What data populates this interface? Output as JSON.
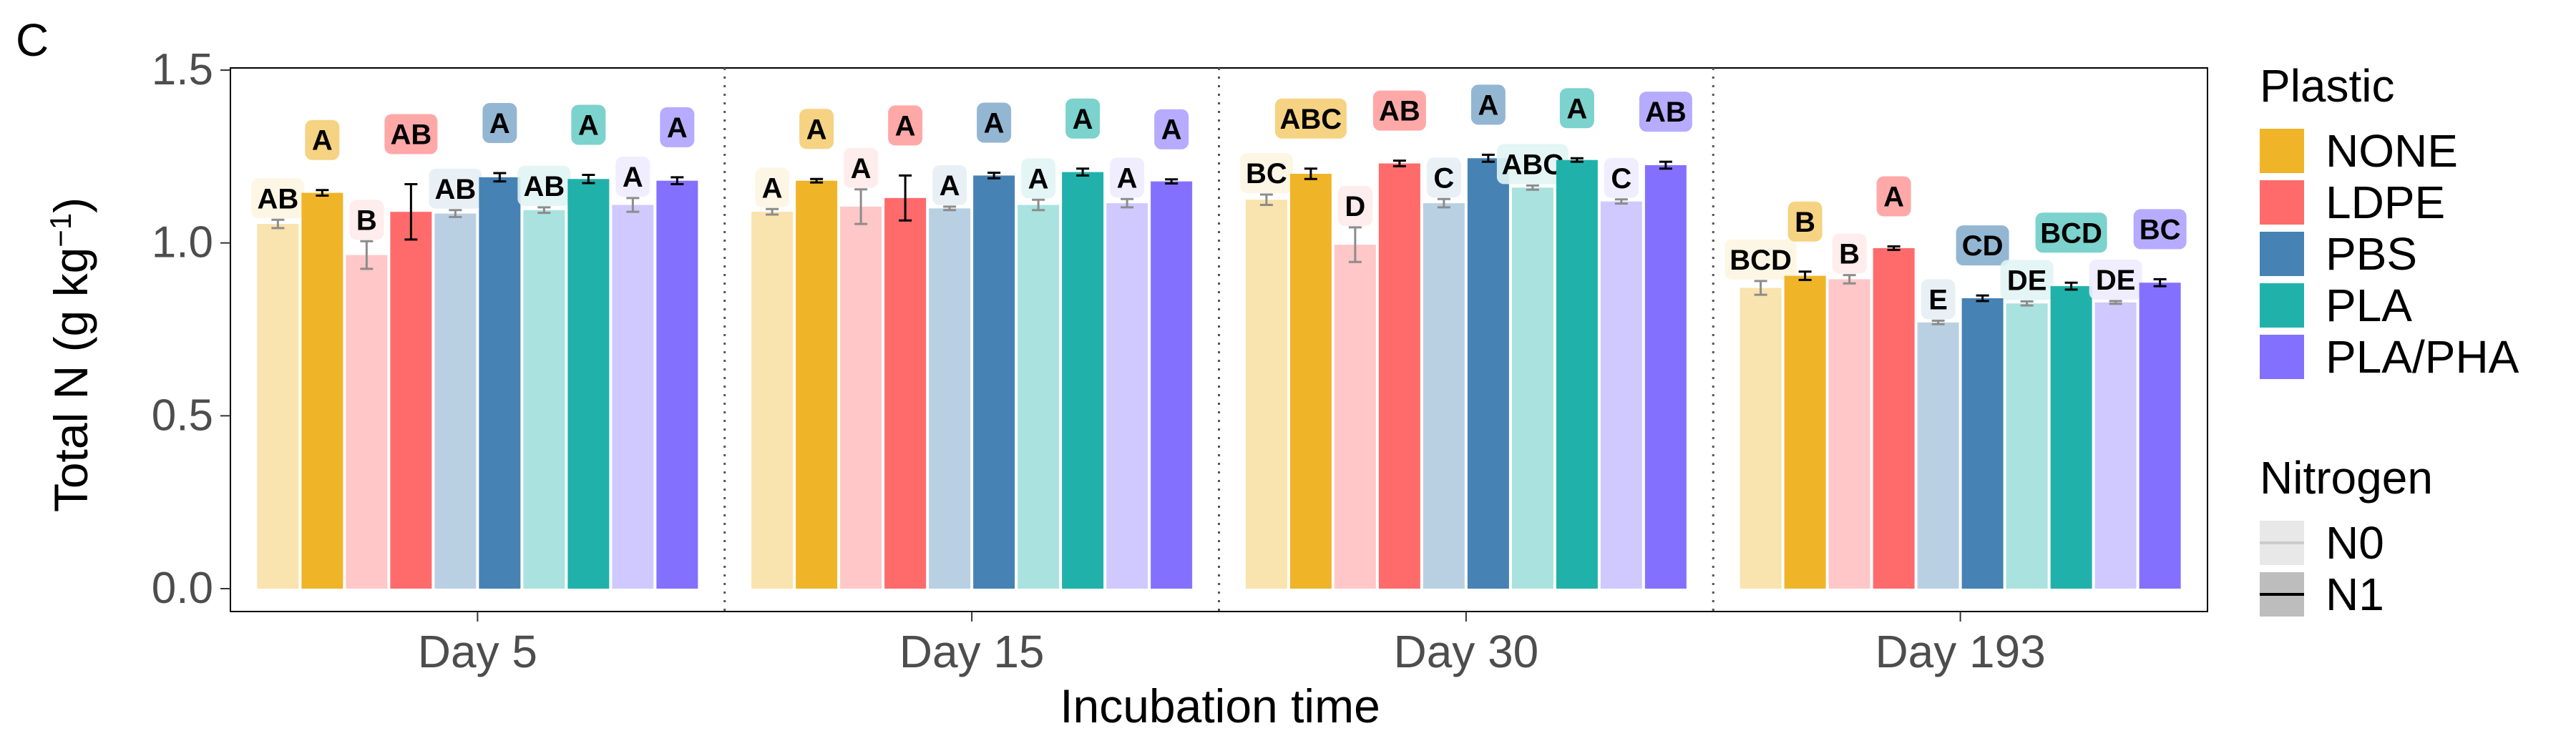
{
  "panel_label": "C",
  "chart_data": {
    "type": "bar",
    "xlabel": "Incubation time",
    "ylabel_main": "Total N (g kg",
    "ylabel_sup": "−1",
    "ylabel_end": ")",
    "ylim": [
      0,
      1.5
    ],
    "yticks": [
      "0.0",
      "0.5",
      "1.0",
      "1.5"
    ],
    "facets": [
      "Day 5",
      "Day 15",
      "Day 30",
      "Day 193"
    ],
    "plastic_order": [
      "NONE",
      "LDPE",
      "PBS",
      "PLA",
      "PLA/PHA"
    ],
    "nitrogen_order": [
      "N0",
      "N1"
    ],
    "colors": {
      "NONE": "#F0B429",
      "LDPE": "#FF6B6B",
      "PBS": "#4682B4",
      "PLA": "#20B2AA",
      "PLA/PHA": "#8470FF"
    },
    "series": [
      {
        "facet": "Day 5",
        "plastic": "NONE",
        "nitrogen": "N0",
        "value": 1.055,
        "err": 0.012,
        "letter": "AB"
      },
      {
        "facet": "Day 5",
        "plastic": "NONE",
        "nitrogen": "N1",
        "value": 1.145,
        "err": 0.008,
        "letter": "A"
      },
      {
        "facet": "Day 5",
        "plastic": "LDPE",
        "nitrogen": "N0",
        "value": 0.965,
        "err": 0.04,
        "letter": "B"
      },
      {
        "facet": "Day 5",
        "plastic": "LDPE",
        "nitrogen": "N1",
        "value": 1.09,
        "err": 0.08,
        "letter": "AB"
      },
      {
        "facet": "Day 5",
        "plastic": "PBS",
        "nitrogen": "N0",
        "value": 1.085,
        "err": 0.01,
        "letter": "AB"
      },
      {
        "facet": "Day 5",
        "plastic": "PBS",
        "nitrogen": "N1",
        "value": 1.19,
        "err": 0.012,
        "letter": "A"
      },
      {
        "facet": "Day 5",
        "plastic": "PLA",
        "nitrogen": "N0",
        "value": 1.095,
        "err": 0.008,
        "letter": "AB"
      },
      {
        "facet": "Day 5",
        "plastic": "PLA",
        "nitrogen": "N1",
        "value": 1.185,
        "err": 0.012,
        "letter": "A"
      },
      {
        "facet": "Day 5",
        "plastic": "PLA/PHA",
        "nitrogen": "N0",
        "value": 1.11,
        "err": 0.02,
        "letter": "A"
      },
      {
        "facet": "Day 5",
        "plastic": "PLA/PHA",
        "nitrogen": "N1",
        "value": 1.18,
        "err": 0.01,
        "letter": "A"
      },
      {
        "facet": "Day 15",
        "plastic": "NONE",
        "nitrogen": "N0",
        "value": 1.09,
        "err": 0.008,
        "letter": "A"
      },
      {
        "facet": "Day 15",
        "plastic": "NONE",
        "nitrogen": "N1",
        "value": 1.18,
        "err": 0.005,
        "letter": "A"
      },
      {
        "facet": "Day 15",
        "plastic": "LDPE",
        "nitrogen": "N0",
        "value": 1.105,
        "err": 0.05,
        "letter": "A"
      },
      {
        "facet": "Day 15",
        "plastic": "LDPE",
        "nitrogen": "N1",
        "value": 1.13,
        "err": 0.065,
        "letter": "A"
      },
      {
        "facet": "Day 15",
        "plastic": "PBS",
        "nitrogen": "N0",
        "value": 1.1,
        "err": 0.005,
        "letter": "A"
      },
      {
        "facet": "Day 15",
        "plastic": "PBS",
        "nitrogen": "N1",
        "value": 1.195,
        "err": 0.008,
        "letter": "A"
      },
      {
        "facet": "Day 15",
        "plastic": "PLA",
        "nitrogen": "N0",
        "value": 1.11,
        "err": 0.015,
        "letter": "A"
      },
      {
        "facet": "Day 15",
        "plastic": "PLA",
        "nitrogen": "N1",
        "value": 1.205,
        "err": 0.01,
        "letter": "A"
      },
      {
        "facet": "Day 15",
        "plastic": "PLA/PHA",
        "nitrogen": "N0",
        "value": 1.115,
        "err": 0.012,
        "letter": "A"
      },
      {
        "facet": "Day 15",
        "plastic": "PLA/PHA",
        "nitrogen": "N1",
        "value": 1.178,
        "err": 0.006,
        "letter": "A"
      },
      {
        "facet": "Day 30",
        "plastic": "NONE",
        "nitrogen": "N0",
        "value": 1.125,
        "err": 0.015,
        "letter": "BC"
      },
      {
        "facet": "Day 30",
        "plastic": "NONE",
        "nitrogen": "N1",
        "value": 1.2,
        "err": 0.015,
        "letter": "ABC"
      },
      {
        "facet": "Day 30",
        "plastic": "LDPE",
        "nitrogen": "N0",
        "value": 0.995,
        "err": 0.05,
        "letter": "D"
      },
      {
        "facet": "Day 30",
        "plastic": "LDPE",
        "nitrogen": "N1",
        "value": 1.23,
        "err": 0.008,
        "letter": "AB"
      },
      {
        "facet": "Day 30",
        "plastic": "PBS",
        "nitrogen": "N0",
        "value": 1.115,
        "err": 0.012,
        "letter": "C"
      },
      {
        "facet": "Day 30",
        "plastic": "PBS",
        "nitrogen": "N1",
        "value": 1.245,
        "err": 0.01,
        "letter": "A"
      },
      {
        "facet": "Day 30",
        "plastic": "PLA",
        "nitrogen": "N0",
        "value": 1.16,
        "err": 0.006,
        "letter": "ABC"
      },
      {
        "facet": "Day 30",
        "plastic": "PLA",
        "nitrogen": "N1",
        "value": 1.24,
        "err": 0.005,
        "letter": "A"
      },
      {
        "facet": "Day 30",
        "plastic": "PLA/PHA",
        "nitrogen": "N0",
        "value": 1.12,
        "err": 0.006,
        "letter": "C"
      },
      {
        "facet": "Day 30",
        "plastic": "PLA/PHA",
        "nitrogen": "N1",
        "value": 1.225,
        "err": 0.01,
        "letter": "AB"
      },
      {
        "facet": "Day 193",
        "plastic": "NONE",
        "nitrogen": "N0",
        "value": 0.87,
        "err": 0.02,
        "letter": "BCD"
      },
      {
        "facet": "Day 193",
        "plastic": "NONE",
        "nitrogen": "N1",
        "value": 0.905,
        "err": 0.012,
        "letter": "B"
      },
      {
        "facet": "Day 193",
        "plastic": "LDPE",
        "nitrogen": "N0",
        "value": 0.895,
        "err": 0.012,
        "letter": "B"
      },
      {
        "facet": "Day 193",
        "plastic": "LDPE",
        "nitrogen": "N1",
        "value": 0.985,
        "err": 0.005,
        "letter": "A"
      },
      {
        "facet": "Day 193",
        "plastic": "PBS",
        "nitrogen": "N0",
        "value": 0.77,
        "err": 0.005,
        "letter": "E"
      },
      {
        "facet": "Day 193",
        "plastic": "PBS",
        "nitrogen": "N1",
        "value": 0.84,
        "err": 0.008,
        "letter": "CD"
      },
      {
        "facet": "Day 193",
        "plastic": "PLA",
        "nitrogen": "N0",
        "value": 0.825,
        "err": 0.006,
        "letter": "DE"
      },
      {
        "facet": "Day 193",
        "plastic": "PLA",
        "nitrogen": "N1",
        "value": 0.875,
        "err": 0.01,
        "letter": "BCD"
      },
      {
        "facet": "Day 193",
        "plastic": "PLA/PHA",
        "nitrogen": "N0",
        "value": 0.828,
        "err": 0.004,
        "letter": "DE"
      },
      {
        "facet": "Day 193",
        "plastic": "PLA/PHA",
        "nitrogen": "N1",
        "value": 0.885,
        "err": 0.01,
        "letter": "BC"
      }
    ],
    "legend": {
      "plastic_title": "Plastic",
      "plastic_items": [
        "NONE",
        "LDPE",
        "PBS",
        "PLA",
        "PLA/PHA"
      ],
      "nitrogen_title": "Nitrogen",
      "nitrogen_items": [
        "N0",
        "N1"
      ],
      "placement": "right"
    },
    "grid": false
  }
}
